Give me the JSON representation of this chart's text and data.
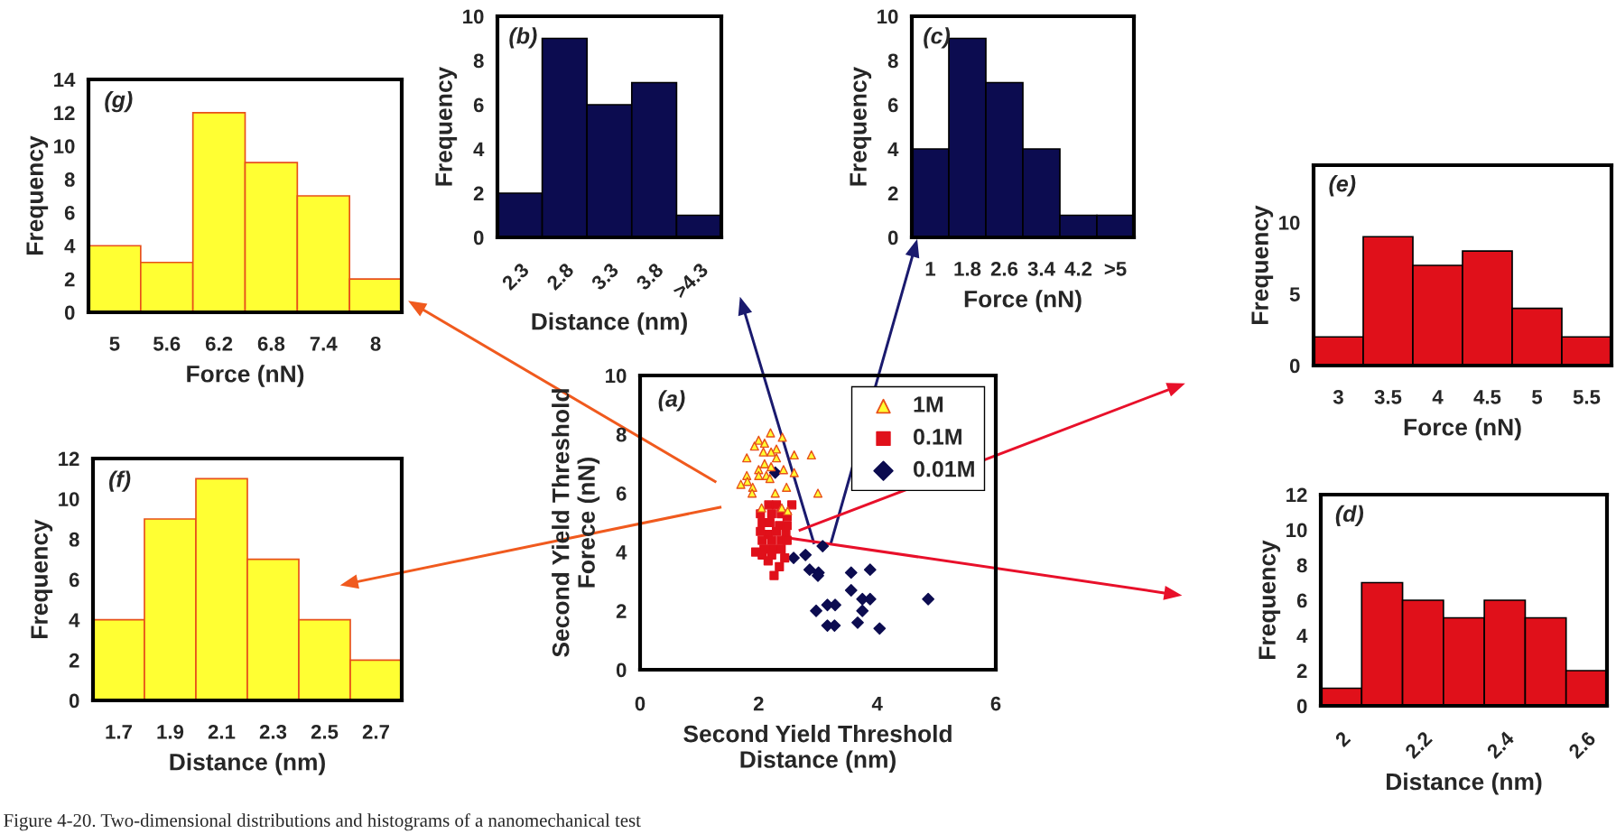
{
  "chart_data": [
    {
      "type": "bar",
      "categories": [
        "2.3",
        "2.8",
        "3.3",
        "3.8",
        ">4.3"
      ],
      "values": [
        2,
        9,
        6,
        7,
        1
      ],
      "color": "#0c0c50",
      "xlabel": "Distance (nm)",
      "ylabel": "Frequency",
      "ylim": [
        0,
        10
      ],
      "yticks": [
        0,
        2,
        4,
        6,
        8,
        10
      ],
      "annotations": [
        "(b)"
      ]
    },
    {
      "type": "bar",
      "categories": [
        "1",
        "1.8",
        "2.6",
        "3.4",
        "4.2",
        ">5"
      ],
      "values": [
        4,
        9,
        7,
        4,
        1,
        1
      ],
      "color": "#0c0c50",
      "xlabel": "Force (nN)",
      "ylabel": "Frequency",
      "ylim": [
        0,
        10
      ],
      "yticks": [
        0,
        2,
        4,
        6,
        8,
        10
      ],
      "annotations": [
        "(c)"
      ]
    },
    {
      "type": "bar",
      "categories": [
        "5",
        "5.6",
        "6.2",
        "6.8",
        "7.4",
        "8"
      ],
      "values": [
        4,
        3,
        12,
        9,
        7,
        2
      ],
      "color": "#ffff33",
      "xlabel": "Force (nN)",
      "ylabel": "Frequency",
      "ylim": [
        0,
        14
      ],
      "yticks": [
        0,
        2,
        4,
        6,
        8,
        10,
        12,
        14
      ],
      "annotations": [
        "(g)"
      ]
    },
    {
      "type": "bar",
      "categories": [
        "3",
        "3.5",
        "4",
        "4.5",
        "5",
        "5.5"
      ],
      "values": [
        2,
        9,
        7,
        8,
        4,
        2
      ],
      "color": "#e0101a",
      "xlabel": "Force (nN)",
      "ylabel": "Frequency",
      "ylim": [
        0,
        14
      ],
      "yticks": [
        0,
        5,
        10
      ],
      "annotations": [
        "(e)"
      ]
    },
    {
      "type": "scatter",
      "xlabel": "Second Yield Threshold\nDistance (nm)",
      "ylabel": "Second Yield Threshold\nForece (nN)",
      "xlim": [
        0,
        6
      ],
      "ylim": [
        0,
        10
      ],
      "xticks": [
        0,
        2,
        4,
        6
      ],
      "yticks": [
        0,
        2,
        4,
        6,
        8,
        10
      ],
      "legend": "top right",
      "annotations": [
        "(a)",
        "Figure 4-20. Two-dimensional distributions and histograms of a nanomechanical test"
      ],
      "series": [
        {
          "name": "1M",
          "color": "#ffff33",
          "marker": "triangle",
          "x": [
            2.2,
            2.0,
            2.4,
            1.93,
            2.1,
            2.3,
            2.08,
            2.21,
            2.3,
            2.6,
            2.89,
            1.8,
            2.1,
            2.21,
            2.0,
            2.42,
            2.6,
            1.8,
            2.0,
            2.13,
            1.81,
            2.19,
            1.7,
            1.9,
            2.47,
            2.28,
            1.89,
            3.0,
            2.05,
            2.39,
            2.49
          ],
          "values": [
            8.05,
            7.8,
            7.9,
            7.6,
            7.7,
            7.5,
            7.4,
            7.4,
            7.2,
            7.3,
            7.3,
            7.2,
            7.0,
            6.9,
            6.8,
            6.8,
            6.7,
            6.6,
            6.6,
            6.6,
            6.4,
            6.5,
            6.3,
            6.2,
            6.2,
            6.0,
            6.0,
            6.0,
            5.5,
            5.5,
            5.4
          ]
        },
        {
          "name": "0.1M",
          "color": "#e0101a",
          "marker": "square",
          "x": [
            2.17,
            2.3,
            2.56,
            2.03,
            2.22,
            2.38,
            2.48,
            2.06,
            2.19,
            2.35,
            2.48,
            2.03,
            2.16,
            2.3,
            2.46,
            2.06,
            2.22,
            2.38,
            2.48,
            2.09,
            2.24,
            2.38,
            1.95,
            2.06,
            2.22,
            2.44,
            2.16,
            2.35,
            2.26
          ],
          "values": [
            5.6,
            5.6,
            5.6,
            5.3,
            5.3,
            5.3,
            5.2,
            5.0,
            5.0,
            4.9,
            4.9,
            4.7,
            4.6,
            4.7,
            4.6,
            4.4,
            4.4,
            4.4,
            4.4,
            4.1,
            4.1,
            4.1,
            4.0,
            3.9,
            3.9,
            3.8,
            3.7,
            3.5,
            3.2
          ]
        },
        {
          "name": "0.01M",
          "color": "#0c0c50",
          "marker": "diamond",
          "x": [
            2.28,
            3.08,
            2.59,
            2.79,
            2.86,
            3.01,
            3.0,
            3.56,
            3.88,
            3.56,
            3.75,
            3.88,
            4.86,
            3.16,
            3.29,
            2.97,
            3.75,
            3.67,
            3.16,
            3.28,
            4.04
          ],
          "values": [
            6.7,
            4.2,
            3.8,
            3.9,
            3.4,
            3.3,
            3.2,
            3.3,
            3.4,
            2.7,
            2.4,
            2.4,
            2.4,
            2.2,
            2.2,
            2.0,
            2.0,
            1.6,
            1.5,
            1.5,
            1.4
          ]
        }
      ]
    },
    {
      "type": "bar",
      "categories": [
        "1.7",
        "1.9",
        "2.1",
        "2.3",
        "2.5",
        "2.7"
      ],
      "values": [
        4,
        9,
        11,
        7,
        4,
        2
      ],
      "color": "#ffff33",
      "xlabel": "Distance (nm)",
      "ylabel": "Frequency",
      "ylim": [
        0,
        12
      ],
      "yticks": [
        0,
        2,
        4,
        6,
        8,
        10,
        12
      ],
      "annotations": [
        "(f)"
      ]
    },
    {
      "type": "bar",
      "categories": [
        "2",
        null,
        "2.2",
        null,
        "2.4",
        null,
        "2.6"
      ],
      "values": [
        1,
        7,
        6,
        5,
        6,
        5,
        2
      ],
      "color": "#e0101a",
      "xlabel": "Distance (nm)",
      "ylabel": "Frequency",
      "ylim": [
        0,
        12
      ],
      "yticks": [
        0,
        2,
        4,
        6,
        8,
        10,
        12
      ],
      "annotations": [
        "(d)"
      ]
    }
  ]
}
